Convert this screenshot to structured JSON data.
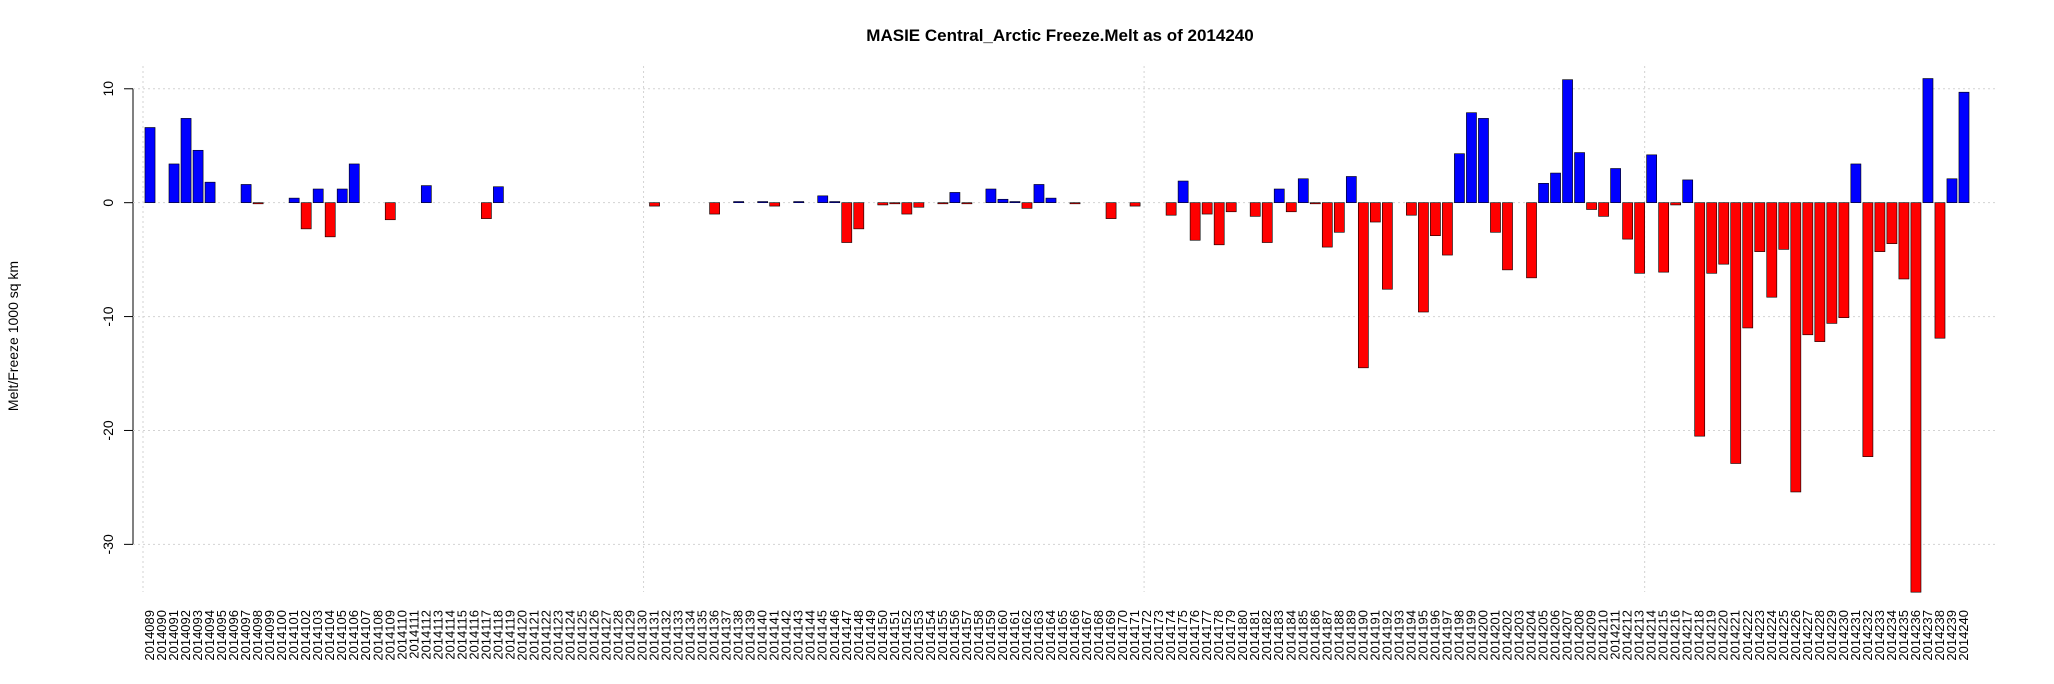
{
  "chart_data": {
    "type": "bar",
    "title": "MASIE Central_Arctic Freeze.Melt as of 2014240",
    "y_label": "Melt/Freeze 1000 sq km",
    "categories": [
      "2014089",
      "2014090",
      "2014091",
      "2014092",
      "2014093",
      "2014094",
      "2014095",
      "2014096",
      "2014097",
      "2014098",
      "2014099",
      "2014100",
      "2014101",
      "2014102",
      "2014103",
      "2014104",
      "2014105",
      "2014106",
      "2014107",
      "2014108",
      "2014109",
      "2014110",
      "2014111",
      "2014112",
      "2014113",
      "2014114",
      "2014115",
      "2014116",
      "2014117",
      "2014118",
      "2014119",
      "2014120",
      "2014121",
      "2014122",
      "2014123",
      "2014124",
      "2014125",
      "2014126",
      "2014127",
      "2014128",
      "2014129",
      "2014130",
      "2014131",
      "2014132",
      "2014133",
      "2014134",
      "2014135",
      "2014136",
      "2014137",
      "2014138",
      "2014139",
      "2014140",
      "2014141",
      "2014142",
      "2014143",
      "2014144",
      "2014145",
      "2014146",
      "2014147",
      "2014148",
      "2014149",
      "2014150",
      "2014151",
      "2014152",
      "2014153",
      "2014154",
      "2014155",
      "2014156",
      "2014157",
      "2014158",
      "2014159",
      "2014160",
      "2014161",
      "2014162",
      "2014163",
      "2014164",
      "2014165",
      "2014166",
      "2014167",
      "2014168",
      "2014169",
      "2014170",
      "2014171",
      "2014172",
      "2014173",
      "2014174",
      "2014175",
      "2014176",
      "2014177",
      "2014178",
      "2014179",
      "2014180",
      "2014181",
      "2014182",
      "2014183",
      "2014184",
      "2014185",
      "2014186",
      "2014187",
      "2014188",
      "2014189",
      "2014190",
      "2014191",
      "2014192",
      "2014193",
      "2014194",
      "2014195",
      "2014196",
      "2014197",
      "2014198",
      "2014199",
      "2014200",
      "2014201",
      "2014202",
      "2014203",
      "2014204",
      "2014205",
      "2014206",
      "2014207",
      "2014208",
      "2014209",
      "2014210",
      "2014211",
      "2014212",
      "2014213",
      "2014214",
      "2014215",
      "2014216",
      "2014217",
      "2014218",
      "2014219",
      "2014220",
      "2014221",
      "2014222",
      "2014223",
      "2014224",
      "2014225",
      "2014226",
      "2014227",
      "2014228",
      "2014229",
      "2014230",
      "2014231",
      "2014232",
      "2014233",
      "2014234",
      "2014235",
      "2014236",
      "2014237",
      "2014238",
      "2014239",
      "2014240"
    ],
    "values": [
      6.6,
      0,
      3.4,
      7.4,
      4.6,
      1.8,
      0,
      0,
      1.6,
      -0.1,
      0,
      0,
      0.4,
      -2.3,
      1.2,
      -3.0,
      1.2,
      3.4,
      0,
      0,
      -1.5,
      0,
      0,
      1.5,
      0,
      0,
      0,
      0,
      -1.4,
      1.4,
      0,
      0,
      0,
      0,
      0,
      0,
      0,
      0,
      0,
      0,
      0,
      0,
      -0.3,
      0,
      0,
      0,
      0,
      -1.0,
      0,
      0.1,
      0,
      0.1,
      -0.3,
      0,
      0.1,
      0,
      0.6,
      0.1,
      -3.5,
      -2.3,
      0,
      -0.2,
      -0.1,
      -1.0,
      -0.4,
      0,
      -0.1,
      0.9,
      -0.1,
      0,
      1.2,
      0.3,
      0.1,
      -0.5,
      1.6,
      0.4,
      0,
      -0.1,
      0,
      0,
      -1.4,
      0,
      -0.3,
      0,
      0,
      -1.1,
      1.9,
      -3.3,
      -1.0,
      -3.7,
      -0.8,
      0,
      -1.2,
      -3.5,
      1.2,
      -0.8,
      2.1,
      -0.1,
      -3.9,
      -2.6,
      2.3,
      -14.5,
      -1.7,
      -7.6,
      0,
      -1.1,
      -9.6,
      -2.9,
      -4.6,
      4.3,
      7.9,
      7.4,
      -2.6,
      -5.9,
      0,
      -6.6,
      1.7,
      2.6,
      10.8,
      4.4,
      -0.6,
      -1.2,
      3.0,
      -3.2,
      -6.2,
      4.2,
      -6.1,
      -0.2,
      2.0,
      -20.5,
      -6.2,
      -5.4,
      -22.9,
      -11.0,
      -4.3,
      -8.3,
      -4.1,
      -25.4,
      -11.6,
      -12.2,
      -10.6,
      -10.1,
      3.4,
      -22.3,
      -4.3,
      -3.6,
      -6.7,
      -34.2,
      10.9,
      -11.9,
      2.1,
      9.7
    ],
    "positive_color": "#0000ff",
    "negative_color": "#ff0000",
    "ylim": [
      -35.5,
      12
    ],
    "yticks": [
      -30,
      -20,
      -10,
      0,
      10
    ],
    "grid": true
  }
}
